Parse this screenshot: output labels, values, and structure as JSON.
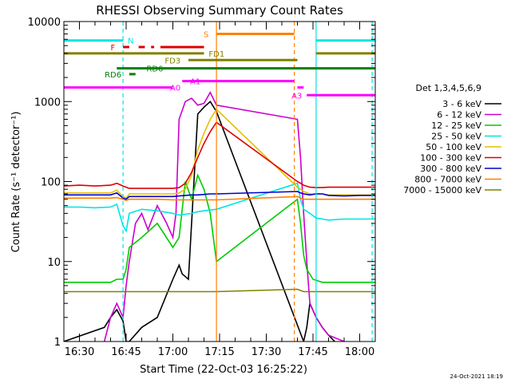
{
  "chart_data": {
    "type": "line",
    "title": "RHESSI Observing Summary Count Rates",
    "xlabel": "Start Time (22-Oct-03 16:25:22)",
    "ylabel": "Count Rate (s⁻¹ detector⁻¹)",
    "yscale": "log",
    "ylim": [
      1,
      10000
    ],
    "xlim_minutes_after_1630": [
      -5,
      95
    ],
    "x_tick_labels": [
      "16:30",
      "16:45",
      "17:00",
      "17:15",
      "17:30",
      "17:45",
      "18:00"
    ],
    "x_tick_minutes": [
      0,
      15,
      30,
      45,
      60,
      75,
      90
    ],
    "y_tick_labels": [
      "1",
      "10",
      "100",
      "1000",
      "10000"
    ],
    "y_tick_values": [
      1,
      10,
      100,
      1000,
      10000
    ],
    "legend_title": "Det 1,3,4,5,6,9",
    "legend_position": "right",
    "timestamp": "24-Oct-2021 18:19",
    "data_gaps_minutes": [
      [
        45,
        70
      ]
    ],
    "series": [
      {
        "name": "3 - 6 keV",
        "color": "#000000",
        "x": [
          -5,
          8,
          10,
          12,
          14,
          15,
          16,
          20,
          25,
          30,
          32,
          33,
          35,
          38,
          40,
          42,
          44,
          72,
          73,
          74,
          76,
          78,
          80,
          82
        ],
        "y": [
          1,
          1.5,
          2,
          2.5,
          1.8,
          1,
          1,
          1.5,
          2,
          6,
          9,
          7,
          6,
          700,
          850,
          1000,
          750,
          1,
          1.5,
          3,
          2,
          1.5,
          1.2,
          1
        ]
      },
      {
        "name": "6 - 12 keV",
        "color": "#cc00cc",
        "x": [
          8,
          10,
          12,
          14,
          15,
          16,
          18,
          20,
          22,
          25,
          28,
          30,
          31,
          32,
          34,
          36,
          38,
          40,
          42,
          44,
          70,
          71,
          72,
          73,
          74,
          76,
          78,
          80,
          85
        ],
        "y": [
          1,
          2,
          3,
          2,
          5,
          10,
          30,
          40,
          25,
          50,
          30,
          20,
          40,
          600,
          1000,
          1100,
          900,
          950,
          1300,
          900,
          600,
          200,
          40,
          10,
          3,
          2,
          1.5,
          1.2,
          1
        ]
      },
      {
        "name": "12 - 25 keV",
        "color": "#00cc00",
        "x": [
          -5,
          5,
          10,
          12,
          14,
          15,
          16,
          20,
          25,
          30,
          32,
          34,
          36,
          38,
          40,
          42,
          44,
          70,
          71,
          72,
          73,
          75,
          78,
          80,
          85,
          95
        ],
        "y": [
          5.5,
          5.5,
          5.5,
          6,
          6,
          8,
          15,
          20,
          30,
          15,
          20,
          100,
          60,
          120,
          80,
          40,
          10,
          60,
          30,
          12,
          8,
          6,
          5.5,
          5.5,
          5.5,
          5.5
        ]
      },
      {
        "name": "25 - 50 keV",
        "color": "#00e5e5",
        "x": [
          -5,
          0,
          5,
          10,
          12,
          14,
          15,
          16,
          20,
          25,
          30,
          32,
          34,
          36,
          38,
          40,
          42,
          44,
          70,
          71,
          72,
          74,
          76,
          78,
          80,
          85,
          90,
          95
        ],
        "y": [
          48,
          48,
          47,
          48,
          52,
          28,
          24,
          40,
          45,
          43,
          40,
          38,
          39,
          40,
          42,
          43,
          44,
          45,
          95,
          60,
          45,
          40,
          35,
          34,
          33,
          34,
          34,
          34
        ]
      },
      {
        "name": "50 - 100 keV",
        "color": "#e5c000",
        "x": [
          -5,
          0,
          5,
          10,
          12,
          14,
          15,
          16,
          20,
          25,
          30,
          32,
          34,
          36,
          38,
          40,
          42,
          44,
          70,
          71,
          72,
          74,
          76,
          78,
          80,
          85,
          90,
          95
        ],
        "y": [
          72,
          72,
          72,
          72,
          78,
          65,
          62,
          70,
          70,
          70,
          70,
          72,
          80,
          120,
          250,
          400,
          600,
          800,
          85,
          80,
          75,
          70,
          70,
          70,
          68,
          68,
          68,
          68
        ]
      },
      {
        "name": "100 - 300 keV",
        "color": "#e00000",
        "x": [
          -5,
          0,
          5,
          10,
          12,
          14,
          15,
          16,
          20,
          25,
          30,
          32,
          34,
          36,
          38,
          40,
          42,
          44,
          70,
          71,
          72,
          74,
          76,
          78,
          80,
          85,
          90,
          95
        ],
        "y": [
          88,
          90,
          88,
          90,
          95,
          88,
          85,
          82,
          82,
          82,
          82,
          84,
          95,
          130,
          200,
          300,
          420,
          550,
          100,
          95,
          90,
          85,
          84,
          84,
          85,
          85,
          85,
          85
        ]
      },
      {
        "name": "300 - 800 keV",
        "color": "#0000cc",
        "x": [
          -5,
          0,
          5,
          10,
          12,
          14,
          15,
          16,
          20,
          25,
          30,
          32,
          34,
          36,
          38,
          40,
          42,
          44,
          70,
          71,
          72,
          74,
          76,
          78,
          80,
          85,
          90,
          95
        ],
        "y": [
          68,
          68,
          68,
          68,
          72,
          62,
          60,
          65,
          65,
          65,
          65,
          66,
          67,
          68,
          68,
          69,
          70,
          70,
          75,
          72,
          70,
          68,
          70,
          70,
          67,
          66,
          67,
          67
        ]
      },
      {
        "name": "800 - 7000 keV",
        "color": "#ff8000",
        "x": [
          -5,
          0,
          5,
          10,
          12,
          14,
          15,
          16,
          20,
          25,
          30,
          32,
          34,
          36,
          38,
          40,
          42,
          44,
          70,
          71,
          72,
          74,
          76,
          78,
          80,
          85,
          90,
          95
        ],
        "y": [
          62,
          62,
          62,
          62,
          63,
          60,
          58,
          60,
          60,
          60,
          59,
          59,
          59,
          59,
          59,
          59,
          59,
          59,
          65,
          62,
          60,
          60,
          60,
          60,
          60,
          60,
          60,
          60
        ]
      },
      {
        "name": "7000 - 15000 keV",
        "color": "#808000",
        "x": [
          -5,
          5,
          10,
          15,
          20,
          25,
          30,
          35,
          40,
          44,
          70,
          72,
          75,
          80,
          85,
          90,
          95
        ],
        "y": [
          4.2,
          4.2,
          4.2,
          4.2,
          4.2,
          4.2,
          4.2,
          4.2,
          4.2,
          4.2,
          4.5,
          4.2,
          4.2,
          4.2,
          4.2,
          4.2,
          4.2
        ]
      }
    ],
    "vertical_markers": [
      {
        "x": 14,
        "color": "#00e5e5",
        "style": "dashed"
      },
      {
        "x": 44,
        "color": "#ff8000",
        "style": "solid"
      },
      {
        "x": 69,
        "color": "#ff8000",
        "style": "dashed"
      },
      {
        "x": 76,
        "color": "#00e5e5",
        "style": "solid"
      },
      {
        "x": 94,
        "color": "#00e5e5",
        "style": "dashed"
      }
    ],
    "flag_bars": [
      {
        "label": "N",
        "color": "#00e5e5",
        "y": 5800,
        "segments": [
          [
            -5,
            14
          ],
          [
            76,
            95
          ]
        ],
        "label_x": 15,
        "label_side": "right"
      },
      {
        "label": "F",
        "color": "#e00000",
        "y": 4800,
        "segments": [
          [
            14,
            16
          ],
          [
            19,
            21
          ],
          [
            23,
            24
          ],
          [
            26,
            40
          ]
        ],
        "label_x": 12,
        "label_side": "left"
      },
      {
        "label": "S",
        "color": "#ff8000",
        "y": 7000,
        "segments": [
          [
            44,
            69
          ]
        ],
        "label_x": 42,
        "label_side": "left"
      },
      {
        "label": "FD1",
        "color": "#808000",
        "y": 4000,
        "segments": [
          [
            -5,
            40
          ],
          [
            76,
            95
          ]
        ],
        "label_x": 41,
        "label_side": "right"
      },
      {
        "label": "FD3",
        "color": "#808000",
        "y": 3300,
        "segments": [
          [
            35,
            70
          ]
        ],
        "label_x": 33,
        "label_side": "left"
      },
      {
        "label": "RD6",
        "color": "#008000",
        "y": 2600,
        "segments": [
          [
            12,
            95
          ]
        ],
        "label_x": 21,
        "label_side": "right"
      },
      {
        "label": "RD6",
        "color": "#008000",
        "y": 2200,
        "segments": [
          [
            16,
            18
          ]
        ],
        "label_x": 14,
        "label_side": "left"
      },
      {
        "label": "A0",
        "color": "#ff00ff",
        "y": 1500,
        "segments": [
          [
            -5,
            30
          ]
        ],
        "label_x": 33,
        "label_side": "left"
      },
      {
        "label": "A1",
        "color": "#ff00ff",
        "y": 1800,
        "segments": [
          [
            33,
            69
          ]
        ],
        "label_x": 35,
        "label_side": "right"
      },
      {
        "label": "A3",
        "color": "#ff00ff",
        "y": 1200,
        "segments": [
          [
            73,
            95
          ]
        ],
        "label_x": 72,
        "label_side": "left"
      },
      {
        "label": "",
        "color": "#ff00ff",
        "y": 1500,
        "segments": [
          [
            70,
            72
          ]
        ],
        "label_x": 70,
        "label_side": "left"
      }
    ]
  }
}
